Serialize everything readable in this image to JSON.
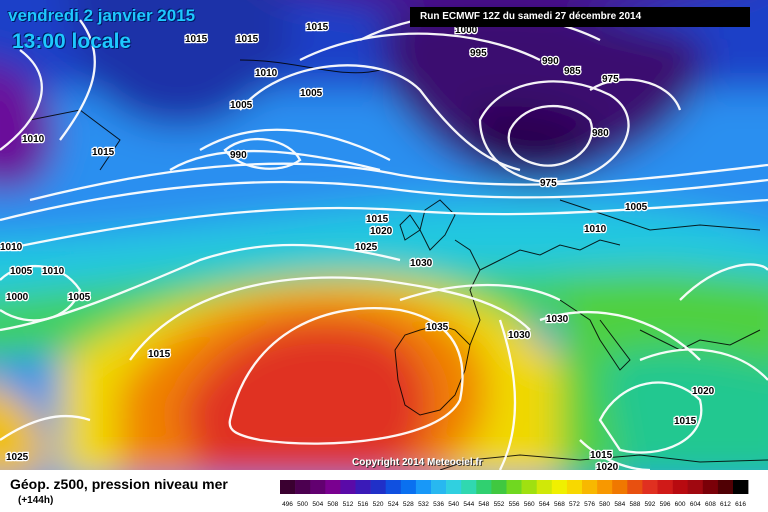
{
  "title": {
    "date": "vendredi 2 janvier 2015",
    "time": "13:00 locale"
  },
  "run_info": "Run ECMWF 12Z du samedi 27 décembre 2014",
  "copyright": "Copyright 2014 Meteociel.fr",
  "variable": "Géop. z500, pression niveau mer",
  "lead_time": "(+144h)",
  "isobar_labels": [
    "1015",
    "1015",
    "1015",
    "1000",
    "995",
    "990",
    "985",
    "975",
    "980",
    "1010",
    "1005",
    "1005",
    "1010",
    "1015",
    "990",
    "975",
    "1005",
    "1015",
    "1020",
    "1010",
    "1025",
    "1030",
    "1010",
    "1005",
    "1010",
    "1000",
    "1005",
    "1035",
    "1030",
    "1030",
    "1015",
    "1020",
    "1015",
    "1015",
    "1020",
    "1025"
  ],
  "scale_labels": [
    "496",
    "500",
    "504",
    "508",
    "512",
    "516",
    "520",
    "524",
    "528",
    "532",
    "536",
    "540",
    "544",
    "548",
    "552",
    "556",
    "560",
    "564",
    "568",
    "572",
    "576",
    "580",
    "584",
    "588",
    "592",
    "596",
    "600",
    "604",
    "608",
    "612",
    "616"
  ],
  "scale_colors": [
    "#3a0030",
    "#4c0050",
    "#620070",
    "#7a0090",
    "#5a0aa8",
    "#3a1ab8",
    "#2030c8",
    "#1050e0",
    "#0a70f0",
    "#1898f8",
    "#28b8f0",
    "#30d0e0",
    "#30d8b0",
    "#30d070",
    "#40c840",
    "#70d820",
    "#a0e010",
    "#d0e808",
    "#f0f000",
    "#f8d800",
    "#f8b800",
    "#f89800",
    "#f07800",
    "#e85010",
    "#e03020",
    "#d01a18",
    "#b80a10",
    "#a00810",
    "#7a0008",
    "#500004",
    "#000000"
  ]
}
